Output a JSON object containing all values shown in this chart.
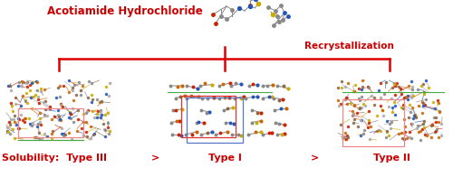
{
  "title": "Acotiamide Hydrochloride",
  "recrystallization_label": "Recrystallization",
  "solubility_label": "Solubility:  Type III",
  "gt1": ">",
  "type1_label": "Type I",
  "gt2": ">",
  "type2_label": "Type II",
  "title_color": "#cc0000",
  "recryst_color": "#cc0000",
  "solubility_color": "#cc0000",
  "type1_color": "#cc0000",
  "type2_color": "#cc0000",
  "gt_color": "#cc0000",
  "line_color": "#dd0000",
  "bg_color": "#ffffff",
  "title_fontsize": 8.5,
  "label_fontsize": 8.0,
  "recryst_fontsize": 7.5,
  "mol_gray": "#888888",
  "mol_red": "#cc2200",
  "mol_blue": "#2255bb",
  "mol_yellow": "#ccaa00",
  "mol_green": "#226622",
  "mol_orange": "#cc6600",
  "box_pink": "#ee8888",
  "box_green": "#44aa44",
  "box_blue": "#5577cc",
  "box_red2": "#dd3333"
}
